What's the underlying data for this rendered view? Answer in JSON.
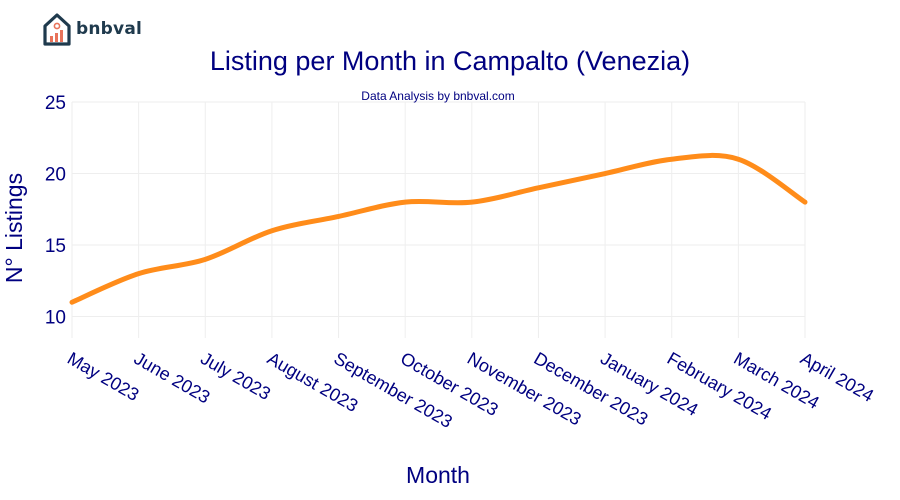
{
  "brand": {
    "name": "bnbval",
    "logo_icon": "house-chart-icon",
    "logo_colors": {
      "house": "#1f3a4d",
      "bars": "#e8735a"
    }
  },
  "chart_data": {
    "type": "line",
    "title": "Listing per Month in Campalto (Venezia)",
    "subtitle": "Data Analysis by bnbval.com",
    "xlabel": "Month",
    "ylabel": "N° Listings",
    "categories": [
      "May 2023",
      "June 2023",
      "July 2023",
      "August 2023",
      "September 2023",
      "October 2023",
      "November 2023",
      "December 2023",
      "January 2024",
      "February 2024",
      "March 2024",
      "April 2024"
    ],
    "series": [
      {
        "values": [
          11,
          13,
          14,
          16,
          17,
          18,
          18,
          19,
          20,
          21,
          21,
          18
        ],
        "color": "#ff8c1a"
      }
    ],
    "ylim": [
      8.5,
      25
    ],
    "yticks": [
      10,
      15,
      20,
      25
    ],
    "grid": true,
    "smooth": true,
    "colors": {
      "title": "#000080",
      "axis_text": "#000080",
      "grid": "#eeeeee",
      "line": "#ff8c1a"
    }
  }
}
